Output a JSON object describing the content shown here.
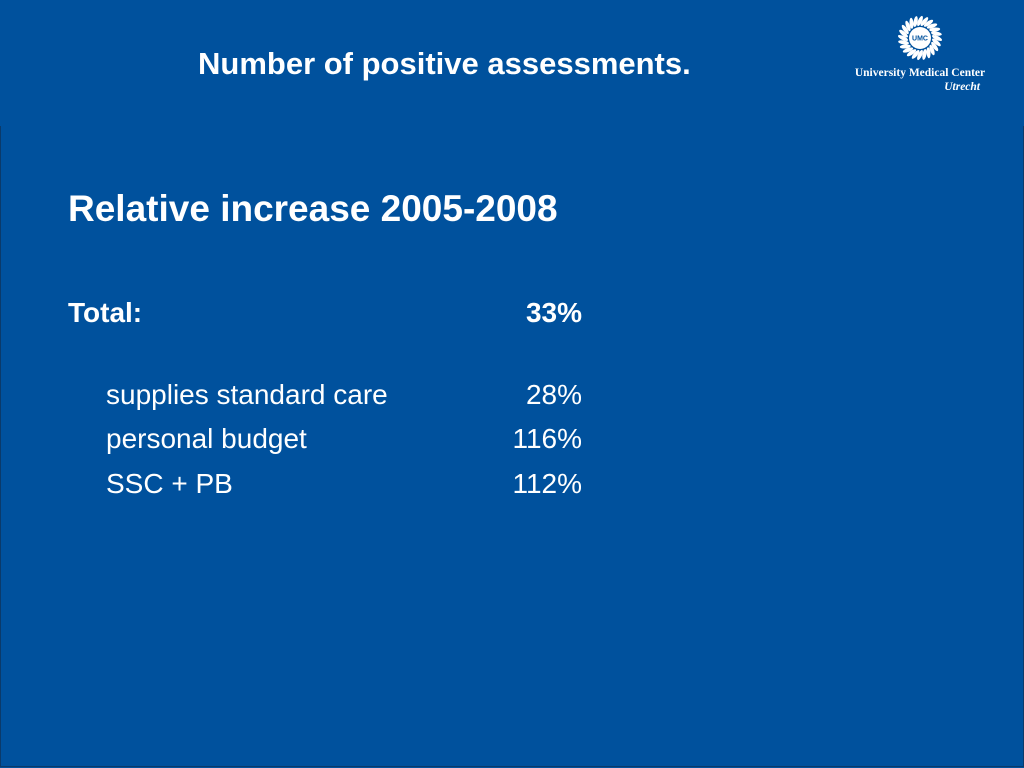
{
  "slide": {
    "title": "Number of positive assessments.",
    "subtitle": "Relative increase 2005-2008",
    "total": {
      "label": "Total:",
      "value": "33%"
    },
    "rows": [
      {
        "label": "supplies standard care",
        "value": "28%"
      },
      {
        "label": "personal budget",
        "value": "116%"
      },
      {
        "label": "SSC + PB",
        "value": "112%"
      }
    ]
  },
  "logo": {
    "mark_text": "UMC",
    "line1": "University Medical Center",
    "line2": "Utrecht",
    "icon": "umc-sun-icon"
  },
  "colors": {
    "background": "#00519d",
    "text": "#ffffff"
  }
}
